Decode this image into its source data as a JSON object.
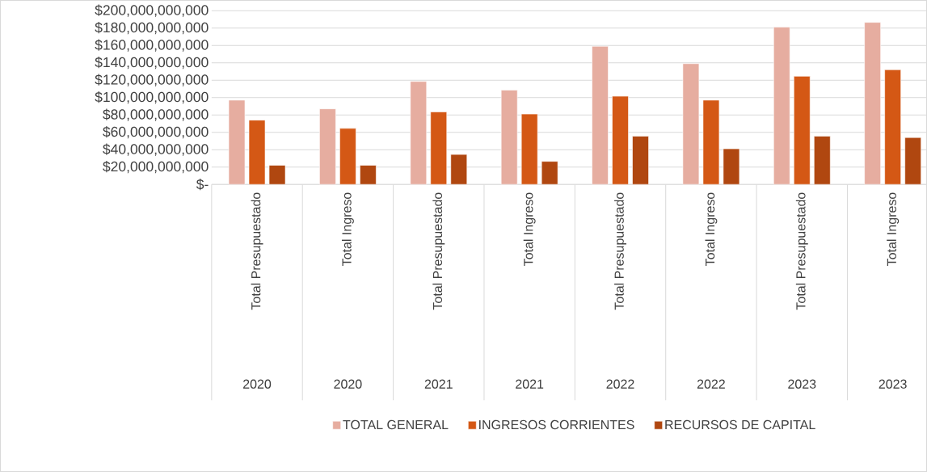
{
  "chart_data": {
    "type": "bar",
    "categories": [
      "Total Presupuestado",
      "Total Ingreso",
      "Total Presupuestado",
      "Total Ingreso",
      "Total Presupuestado",
      "Total Ingreso",
      "Total Presupuestado",
      "Total Ingreso"
    ],
    "annotations": [
      "2020",
      "2020",
      "2021",
      "2021",
      "2022",
      "2022",
      "2023",
      "2023"
    ],
    "series": [
      {
        "name": "TOTAL GENERAL",
        "color": "#e6ada0",
        "values": [
          97000000000,
          87000000000,
          118500000000,
          108500000000,
          159000000000,
          139000000000,
          181000000000,
          186500000000
        ]
      },
      {
        "name": "INGRESOS CORRIENTES",
        "color": "#d45815",
        "values": [
          74000000000,
          64500000000,
          83500000000,
          81000000000,
          101500000000,
          97000000000,
          124500000000,
          132000000000
        ]
      },
      {
        "name": "RECURSOS DE CAPITAL",
        "color": "#b04710",
        "values": [
          22000000000,
          22000000000,
          34500000000,
          26500000000,
          55500000000,
          41000000000,
          55500000000,
          54000000000
        ]
      }
    ],
    "ylim": [
      0,
      200000000000
    ],
    "yticks": [
      {
        "value": 0,
        "label": "$-"
      },
      {
        "value": 20000000000,
        "label": "$20,000,000,000"
      },
      {
        "value": 40000000000,
        "label": "$40,000,000,000"
      },
      {
        "value": 60000000000,
        "label": "$60,000,000,000"
      },
      {
        "value": 80000000000,
        "label": "$80,000,000,000"
      },
      {
        "value": 100000000000,
        "label": "$100,000,000,000"
      },
      {
        "value": 120000000000,
        "label": "$120,000,000,000"
      },
      {
        "value": 140000000000,
        "label": "$140,000,000,000"
      },
      {
        "value": 160000000000,
        "label": "$160,000,000,000"
      },
      {
        "value": 180000000000,
        "label": "$180,000,000,000"
      },
      {
        "value": 200000000000,
        "label": "$200,000,000,000"
      }
    ],
    "grid": "y",
    "legend": "bottom"
  }
}
